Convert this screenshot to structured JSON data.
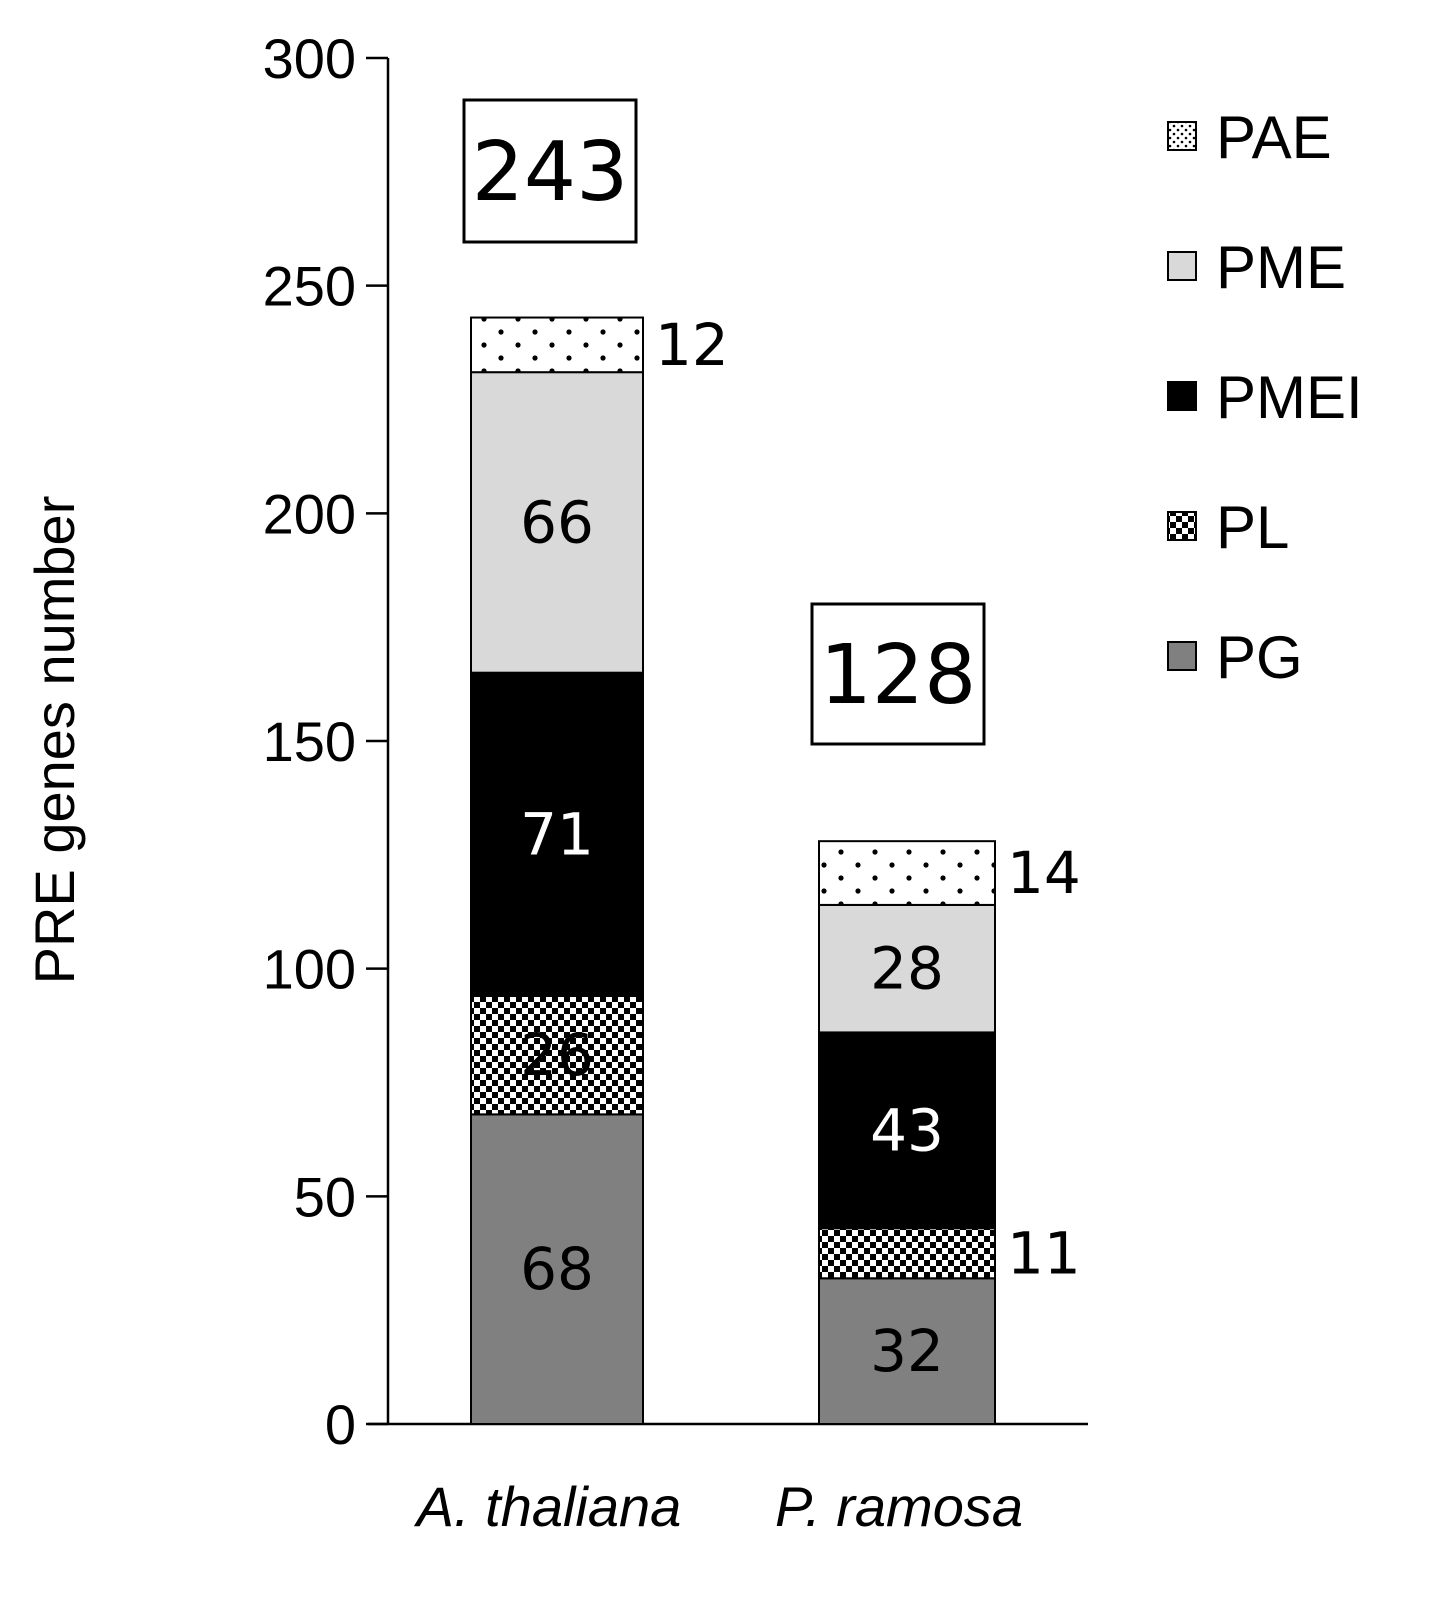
{
  "chart_data": {
    "type": "bar",
    "stacked": true,
    "ylabel": "PRE genes number",
    "ylim": [
      0,
      300
    ],
    "yticks": [
      0,
      50,
      100,
      150,
      200,
      250,
      300
    ],
    "categories": [
      "A. thaliana",
      "P. ramosa"
    ],
    "series": [
      {
        "name": "PG",
        "values": [
          68,
          32
        ],
        "color": "#808080",
        "pattern": "solid"
      },
      {
        "name": "PL",
        "values": [
          26,
          11
        ],
        "color": "#ffffff",
        "pattern": "checker"
      },
      {
        "name": "PMEI",
        "values": [
          71,
          43
        ],
        "color": "#000000",
        "pattern": "solid"
      },
      {
        "name": "PME",
        "values": [
          66,
          28
        ],
        "color": "#d9d9d9",
        "pattern": "solid"
      },
      {
        "name": "PAE",
        "values": [
          12,
          14
        ],
        "color": "#ffffff",
        "pattern": "dots"
      }
    ],
    "totals": [
      243,
      128
    ],
    "legend_position": "top-right",
    "legend_order": [
      "PAE",
      "PME",
      "PMEI",
      "PL",
      "PG"
    ],
    "grid": false
  }
}
